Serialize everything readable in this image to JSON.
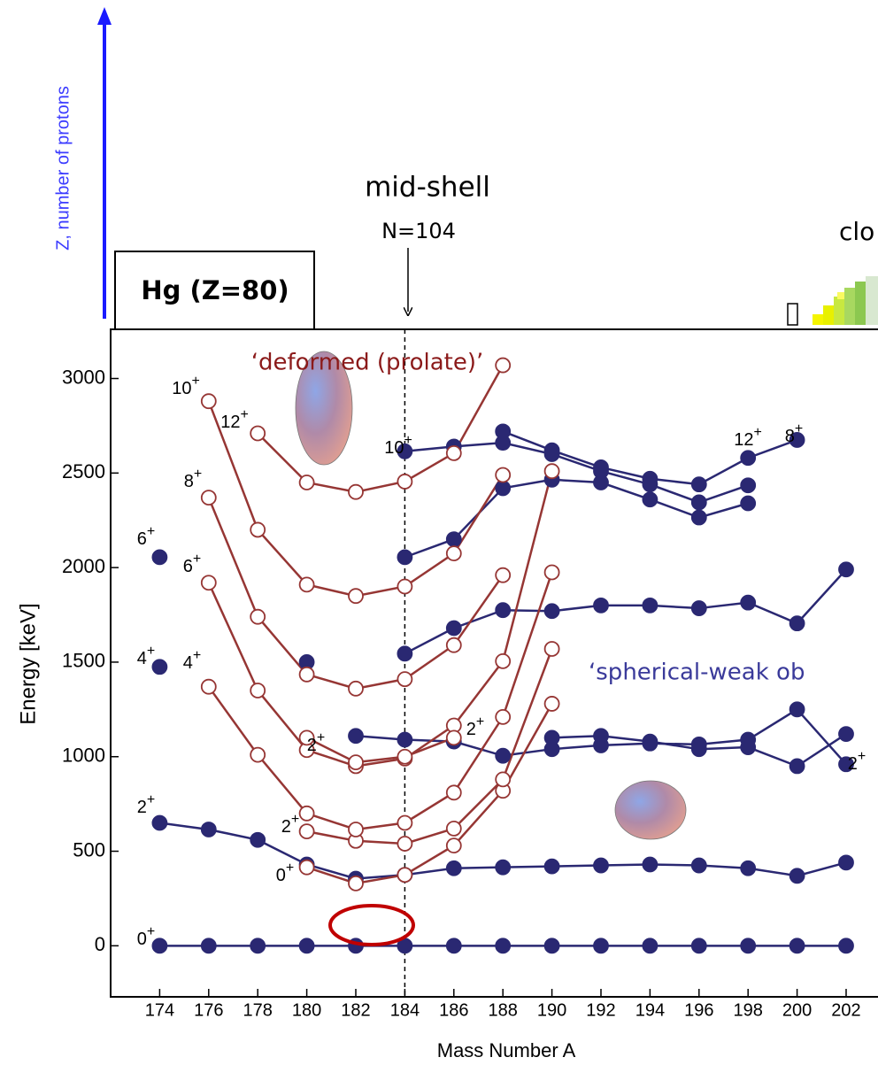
{
  "chart_data": {
    "type": "line",
    "z_axis_label": "Z, number of protons",
    "midshell_label": "mid-shell",
    "midshell_n": "N=104",
    "closed_label": "clo",
    "box_label": "Hg (Z=80)",
    "deformed_label": "‘deformed (prolate)’",
    "spherical_label": "‘spherical-weak ob",
    "ylabel": "Energy [keV]",
    "xlabel": "Mass Number A",
    "xlim": [
      172,
      203.3
    ],
    "ylim": [
      -270,
      3260
    ],
    "xticks": [
      174,
      176,
      178,
      180,
      182,
      184,
      186,
      188,
      190,
      192,
      194,
      196,
      198,
      200,
      202
    ],
    "yticks": [
      0,
      500,
      1000,
      1500,
      2000,
      2500,
      3000
    ],
    "midshell_x": 184,
    "grid": false,
    "annotations": [
      "10+",
      "12+",
      "8+",
      "6+",
      "6+",
      "4+",
      "4+",
      "2+",
      "2+",
      "2+",
      "2+",
      "0+",
      "0+",
      "10+",
      "12+",
      "8+",
      "2+"
    ],
    "series": [
      {
        "color": "#2a2872",
        "marker": "filled",
        "x": [
          174,
          176,
          178,
          180,
          182,
          184,
          186,
          188,
          190,
          192,
          194,
          196,
          198,
          200,
          202
        ],
        "values": [
          0,
          0,
          0,
          0,
          0,
          0,
          0,
          0,
          0,
          0,
          0,
          0,
          0,
          0,
          0
        ]
      },
      {
        "color": "#2a2872",
        "marker": "filled",
        "x": [
          174,
          176,
          178,
          180,
          182,
          184,
          186,
          188,
          190,
          192,
          194,
          196,
          198,
          200,
          202
        ],
        "values": [
          650,
          615,
          560,
          430,
          355,
          375,
          410,
          415,
          420,
          425,
          430,
          425,
          410,
          370,
          440
        ]
      },
      {
        "color": "#2a2872",
        "marker": "filled",
        "x": [
          174
        ],
        "values": [
          1475
        ]
      },
      {
        "color": "#2a2872",
        "marker": "filled",
        "x": [
          180
        ],
        "values": [
          1500
        ]
      },
      {
        "color": "#2a2872",
        "marker": "filled",
        "x": [
          184,
          186,
          188,
          190,
          192,
          194,
          196,
          198,
          200,
          202
        ],
        "values": [
          1545,
          1680,
          1775,
          1770,
          1800,
          1800,
          1785,
          1815,
          1705,
          1990
        ]
      },
      {
        "color": "#2a2872",
        "marker": "filled",
        "x": [
          174
        ],
        "values": [
          2055
        ]
      },
      {
        "color": "#2a2872",
        "marker": "filled",
        "x": [
          184,
          186,
          188,
          190,
          192,
          194,
          196,
          198
        ],
        "values": [
          2055,
          2150,
          2420,
          2465,
          2450,
          2360,
          2265,
          2340
        ]
      },
      {
        "color": "#2a2872",
        "marker": "filled",
        "x": [
          188,
          190,
          192,
          194,
          196,
          198,
          200
        ],
        "values": [
          2720,
          2620,
          2530,
          2470,
          2440,
          2580,
          2675
        ]
      },
      {
        "color": "#2a2872",
        "marker": "filled",
        "x": [
          184,
          186,
          188,
          190,
          192,
          194,
          196,
          198
        ],
        "values": [
          2615,
          2640,
          2660,
          2600,
          2510,
          2440,
          2345,
          2435
        ]
      },
      {
        "color": "#2a2872",
        "marker": "filled",
        "x": [
          182,
          184,
          186,
          188,
          190,
          192,
          194,
          196,
          198,
          200,
          202
        ],
        "values": [
          1110,
          1090,
          1080,
          1005,
          1040,
          1060,
          1070,
          1065,
          1090,
          1250,
          960
        ]
      },
      {
        "color": "#2a2872",
        "marker": "filled",
        "x": [
          190,
          192,
          194,
          196,
          198,
          200,
          202
        ],
        "values": [
          1100,
          1110,
          1080,
          1040,
          1050,
          950,
          1120
        ]
      },
      {
        "color": "#963634",
        "marker": "open",
        "x": [
          180,
          182,
          184,
          186,
          188,
          190
        ],
        "values": [
          415,
          330,
          375,
          530,
          820,
          1280
        ]
      },
      {
        "color": "#963634",
        "marker": "open",
        "x": [
          180,
          182,
          184,
          186,
          188,
          190
        ],
        "values": [
          605,
          555,
          540,
          620,
          880,
          1570
        ]
      },
      {
        "color": "#963634",
        "marker": "open",
        "x": [
          176,
          178,
          180,
          182,
          184,
          186,
          188,
          190
        ],
        "values": [
          1370,
          1010,
          700,
          615,
          650,
          810,
          1210,
          1975
        ]
      },
      {
        "color": "#963634",
        "marker": "open",
        "x": [
          176,
          178,
          180,
          182,
          184,
          186,
          188,
          190
        ],
        "values": [
          1920,
          1350,
          1035,
          950,
          990,
          1165,
          1505,
          2510
        ]
      },
      {
        "color": "#963634",
        "marker": "open",
        "x": [
          180,
          182,
          184,
          186
        ],
        "values": [
          1100,
          970,
          1000,
          1100
        ]
      },
      {
        "color": "#963634",
        "marker": "open",
        "x": [
          176,
          178,
          180,
          182,
          184,
          186,
          188
        ],
        "values": [
          2370,
          1740,
          1435,
          1360,
          1410,
          1590,
          1960
        ]
      },
      {
        "color": "#963634",
        "marker": "open",
        "x": [
          176,
          178,
          180,
          182,
          184,
          186,
          188
        ],
        "values": [
          2880,
          2200,
          1910,
          1850,
          1900,
          2075,
          2490
        ]
      },
      {
        "color": "#963634",
        "marker": "open",
        "x": [
          178,
          180,
          182,
          184,
          186,
          188
        ],
        "values": [
          2710,
          2450,
          2400,
          2455,
          2605,
          3070
        ]
      }
    ]
  }
}
